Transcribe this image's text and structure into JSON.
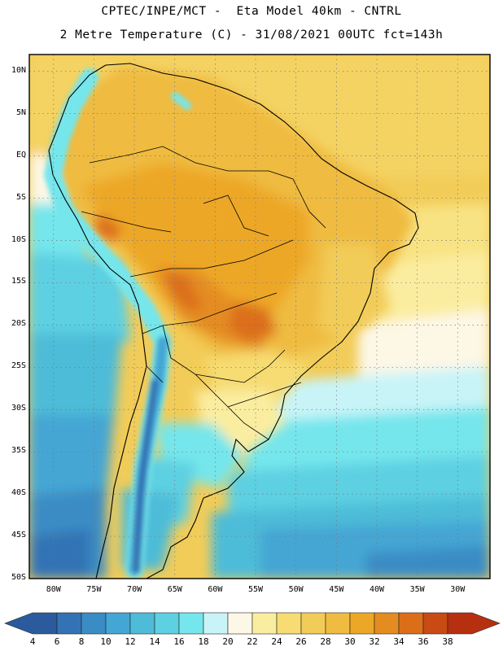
{
  "header": {
    "line1": "CPTEC/INPE/MCT -  Eta Model 40km - CNTRL",
    "line2": "2 Metre Temperature (C) - 31/08/2021 00UTC fct=143h"
  },
  "map": {
    "region": "South America",
    "lat_labels": [
      "10N",
      "5N",
      "EQ",
      "5S",
      "10S",
      "15S",
      "20S",
      "25S",
      "30S",
      "35S",
      "40S",
      "45S",
      "50S"
    ],
    "lat_values": [
      10,
      5,
      0,
      -5,
      -10,
      -15,
      -20,
      -25,
      -30,
      -35,
      -40,
      -45,
      -50
    ],
    "lon_labels": [
      "80W",
      "75W",
      "70W",
      "65W",
      "60W",
      "55W",
      "50W",
      "45W",
      "40W",
      "35W",
      "30W"
    ],
    "lon_values": [
      -80,
      -75,
      -70,
      -65,
      -60,
      -55,
      -50,
      -45,
      -40,
      -35,
      -30
    ],
    "lat_range": [
      -50,
      12
    ],
    "lon_range": [
      -83,
      -26
    ]
  },
  "colorbar": {
    "labels": [
      "4",
      "6",
      "8",
      "10",
      "12",
      "14",
      "16",
      "18",
      "20",
      "22",
      "24",
      "26",
      "28",
      "30",
      "32",
      "34",
      "36",
      "38"
    ],
    "colors": [
      "#2b5b9c",
      "#3373b5",
      "#3a8cc5",
      "#44a6d4",
      "#4ebcd8",
      "#5dd0e2",
      "#74e6ec",
      "#c8f4f8",
      "#fdf7e6",
      "#fbeda0",
      "#f6dc72",
      "#f2cc58",
      "#efbb40",
      "#eda726",
      "#e48c20",
      "#dc6e1a",
      "#c94a12",
      "#b63010"
    ]
  }
}
